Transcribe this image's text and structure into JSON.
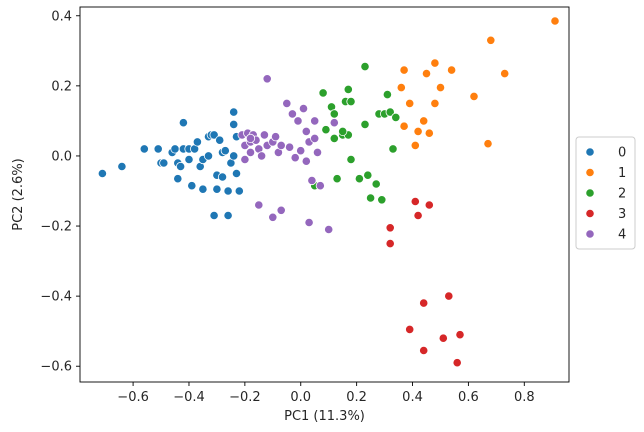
{
  "chart_data": {
    "type": "scatter",
    "title": "",
    "xlabel": "PC1 (11.3%)",
    "ylabel": "PC2 (2.6%)",
    "xlim": [
      -0.79,
      0.96
    ],
    "ylim": [
      -0.645,
      0.425
    ],
    "x_ticks": [
      -0.6,
      -0.4,
      -0.2,
      0.0,
      0.2,
      0.4,
      0.6,
      0.8
    ],
    "x_tick_labels": [
      "−0.6",
      "−0.4",
      "−0.2",
      "0.0",
      "0.2",
      "0.4",
      "0.6",
      "0.8"
    ],
    "y_ticks": [
      -0.6,
      -0.4,
      -0.2,
      0.0,
      0.2,
      0.4
    ],
    "y_tick_labels": [
      "−0.6",
      "−0.4",
      "−0.2",
      "0.0",
      "0.2",
      "0.4"
    ],
    "grid": false,
    "legend_position": "right, outside plot",
    "series": [
      {
        "name": "0",
        "color": "#1f77b4",
        "points": [
          [
            -0.71,
            -0.05
          ],
          [
            -0.64,
            -0.03
          ],
          [
            -0.56,
            0.02
          ],
          [
            -0.51,
            0.02
          ],
          [
            -0.5,
            -0.02
          ],
          [
            -0.49,
            -0.02
          ],
          [
            -0.46,
            0.01
          ],
          [
            -0.45,
            0.02
          ],
          [
            -0.44,
            -0.02
          ],
          [
            -0.42,
            0.095
          ],
          [
            -0.43,
            -0.03
          ],
          [
            -0.44,
            -0.065
          ],
          [
            -0.42,
            0.02
          ],
          [
            -0.4,
            0.02
          ],
          [
            -0.4,
            -0.01
          ],
          [
            -0.38,
            0.02
          ],
          [
            -0.39,
            -0.085
          ],
          [
            -0.37,
            0.04
          ],
          [
            -0.36,
            -0.03
          ],
          [
            -0.35,
            -0.01
          ],
          [
            -0.35,
            -0.095
          ],
          [
            -0.33,
            0.055
          ],
          [
            -0.33,
            0.0
          ],
          [
            -0.32,
            0.06
          ],
          [
            -0.31,
            0.06
          ],
          [
            -0.31,
            -0.17
          ],
          [
            -0.3,
            -0.055
          ],
          [
            -0.3,
            -0.095
          ],
          [
            -0.29,
            0.045
          ],
          [
            -0.28,
            0.01
          ],
          [
            -0.28,
            -0.06
          ],
          [
            -0.27,
            0.015
          ],
          [
            -0.26,
            -0.1
          ],
          [
            -0.26,
            -0.17
          ],
          [
            -0.25,
            -0.02
          ],
          [
            -0.24,
            0.125
          ],
          [
            -0.24,
            0.09
          ],
          [
            -0.24,
            0.0
          ],
          [
            -0.23,
            0.055
          ],
          [
            -0.23,
            -0.05
          ],
          [
            -0.22,
            -0.1
          ]
        ]
      },
      {
        "name": "1",
        "color": "#ff7f0e",
        "points": [
          [
            0.37,
            0.245
          ],
          [
            0.36,
            0.195
          ],
          [
            0.39,
            0.15
          ],
          [
            0.41,
            0.03
          ],
          [
            0.42,
            0.07
          ],
          [
            0.44,
            0.1
          ],
          [
            0.46,
            0.065
          ],
          [
            0.48,
            0.15
          ],
          [
            0.48,
            0.265
          ],
          [
            0.5,
            0.195
          ],
          [
            0.54,
            0.245
          ],
          [
            0.62,
            0.17
          ],
          [
            0.67,
            0.035
          ],
          [
            0.68,
            0.33
          ],
          [
            0.73,
            0.235
          ],
          [
            0.91,
            0.385
          ],
          [
            0.45,
            0.235
          ],
          [
            0.37,
            0.085
          ]
        ]
      },
      {
        "name": "2",
        "color": "#2ca02c",
        "points": [
          [
            0.08,
            0.18
          ],
          [
            0.09,
            0.075
          ],
          [
            0.11,
            0.14
          ],
          [
            0.12,
            0.12
          ],
          [
            0.12,
            0.05
          ],
          [
            0.13,
            -0.065
          ],
          [
            0.15,
            0.06
          ],
          [
            0.16,
            0.155
          ],
          [
            0.17,
            0.19
          ],
          [
            0.17,
            0.06
          ],
          [
            0.18,
            -0.01
          ],
          [
            0.21,
            -0.065
          ],
          [
            0.23,
            0.255
          ],
          [
            0.23,
            0.09
          ],
          [
            0.24,
            -0.055
          ],
          [
            0.25,
            -0.12
          ],
          [
            0.27,
            -0.08
          ],
          [
            0.28,
            0.12
          ],
          [
            0.29,
            -0.125
          ],
          [
            0.3,
            0.12
          ],
          [
            0.31,
            0.175
          ],
          [
            0.32,
            0.125
          ],
          [
            0.33,
            0.02
          ],
          [
            0.34,
            0.11
          ],
          [
            0.15,
            0.07
          ],
          [
            0.18,
            0.155
          ],
          [
            0.05,
            -0.085
          ]
        ]
      },
      {
        "name": "3",
        "color": "#d62728",
        "points": [
          [
            0.32,
            -0.205
          ],
          [
            0.32,
            -0.25
          ],
          [
            0.41,
            -0.13
          ],
          [
            0.42,
            -0.17
          ],
          [
            0.46,
            -0.14
          ],
          [
            0.39,
            -0.495
          ],
          [
            0.44,
            -0.555
          ],
          [
            0.44,
            -0.42
          ],
          [
            0.51,
            -0.52
          ],
          [
            0.53,
            -0.4
          ],
          [
            0.56,
            -0.59
          ],
          [
            0.57,
            -0.51
          ]
        ]
      },
      {
        "name": "4",
        "color": "#9467bd",
        "points": [
          [
            -0.21,
            0.06
          ],
          [
            -0.2,
            0.03
          ],
          [
            -0.2,
            -0.01
          ],
          [
            -0.19,
            0.065
          ],
          [
            -0.18,
            0.04
          ],
          [
            -0.18,
            0.01
          ],
          [
            -0.17,
            0.06
          ],
          [
            -0.16,
            0.045
          ],
          [
            -0.15,
            0.02
          ],
          [
            -0.14,
            0.0
          ],
          [
            -0.13,
            0.06
          ],
          [
            -0.12,
            0.22
          ],
          [
            -0.12,
            0.03
          ],
          [
            -0.1,
            0.04
          ],
          [
            -0.09,
            0.055
          ],
          [
            -0.08,
            0.01
          ],
          [
            -0.07,
            0.03
          ],
          [
            -0.05,
            0.15
          ],
          [
            -0.04,
            0.025
          ],
          [
            -0.03,
            0.12
          ],
          [
            -0.02,
            -0.005
          ],
          [
            -0.01,
            0.1
          ],
          [
            0.0,
            0.015
          ],
          [
            0.01,
            0.135
          ],
          [
            0.02,
            0.07
          ],
          [
            0.02,
            -0.015
          ],
          [
            0.03,
            0.04
          ],
          [
            0.04,
            -0.07
          ],
          [
            0.05,
            0.1
          ],
          [
            0.05,
            0.05
          ],
          [
            0.06,
            0.01
          ],
          [
            0.07,
            -0.085
          ],
          [
            0.1,
            -0.21
          ],
          [
            -0.07,
            -0.155
          ],
          [
            -0.15,
            -0.14
          ],
          [
            -0.1,
            -0.175
          ],
          [
            0.03,
            -0.19
          ],
          [
            -0.18,
            0.05
          ],
          [
            0.12,
            0.095
          ]
        ]
      }
    ]
  }
}
